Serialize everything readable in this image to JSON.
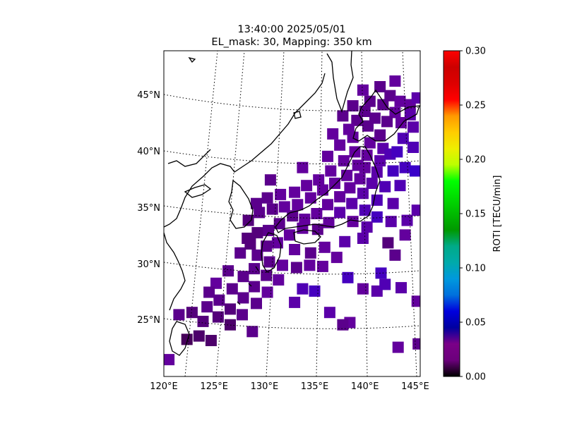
{
  "chart_data": {
    "type": "heatmap",
    "title_line1": "13:40:00 2025/05/01",
    "title_line2": "EL_mask: 30, Mapping: 350 km",
    "colorbar": {
      "label": "ROTI [TECU/min]",
      "min": 0.0,
      "max": 0.3,
      "ticks": [
        "0.00",
        "0.05",
        "0.10",
        "0.15",
        "0.20",
        "0.25",
        "0.30"
      ]
    },
    "lon_ticks": [
      "120°E",
      "125°E",
      "130°E",
      "135°E",
      "140°E",
      "145°E"
    ],
    "lat_ticks": [
      "25°N",
      "30°N",
      "35°N",
      "40°N",
      "45°N"
    ],
    "extent": {
      "lon": [
        120,
        145.5
      ],
      "lat": [
        20,
        49
      ]
    },
    "grid": true,
    "colormap": "nipy_spectral",
    "colors": {
      "low": "#000000",
      "mid": "#3a0a5c",
      "high": "#ff0000"
    },
    "cells": [
      [
        141.5,
        45.8,
        0.03
      ],
      [
        142.5,
        45.0,
        0.03
      ],
      [
        143.5,
        44.5,
        0.035
      ],
      [
        144.5,
        44.2,
        0.035
      ],
      [
        141.8,
        44.2,
        0.03
      ],
      [
        143.0,
        43.5,
        0.035
      ],
      [
        144.5,
        43.3,
        0.04
      ],
      [
        141.0,
        43.0,
        0.03
      ],
      [
        142.2,
        42.7,
        0.03
      ],
      [
        143.6,
        42.6,
        0.035
      ],
      [
        144.8,
        42.2,
        0.04
      ],
      [
        140.3,
        42.3,
        0.03
      ],
      [
        141.5,
        41.5,
        0.03
      ],
      [
        140.5,
        40.8,
        0.035
      ],
      [
        141.8,
        40.3,
        0.04
      ],
      [
        140.2,
        39.7,
        0.035
      ],
      [
        141.5,
        39.2,
        0.04
      ],
      [
        142.5,
        39.8,
        0.045
      ],
      [
        140.0,
        38.6,
        0.035
      ],
      [
        141.2,
        38.2,
        0.04
      ],
      [
        142.8,
        38.3,
        0.05
      ],
      [
        144.0,
        38.6,
        0.05
      ],
      [
        139.5,
        37.6,
        0.035
      ],
      [
        140.7,
        37.2,
        0.04
      ],
      [
        142.0,
        36.9,
        0.045
      ],
      [
        143.5,
        37.0,
        0.045
      ],
      [
        138.5,
        36.8,
        0.035
      ],
      [
        139.8,
        36.3,
        0.04
      ],
      [
        141.2,
        35.7,
        0.045
      ],
      [
        142.8,
        35.4,
        0.04
      ],
      [
        137.5,
        36.0,
        0.035
      ],
      [
        138.7,
        35.4,
        0.04
      ],
      [
        140.0,
        34.8,
        0.045
      ],
      [
        141.2,
        34.2,
        0.05
      ],
      [
        142.6,
        33.8,
        0.04
      ],
      [
        136.3,
        35.3,
        0.035
      ],
      [
        137.5,
        34.6,
        0.04
      ],
      [
        138.8,
        33.8,
        0.035
      ],
      [
        140.2,
        33.3,
        0.04
      ],
      [
        135.2,
        34.5,
        0.035
      ],
      [
        136.4,
        33.7,
        0.035
      ],
      [
        134.0,
        34.0,
        0.035
      ],
      [
        135.3,
        33.1,
        0.03
      ],
      [
        132.8,
        34.3,
        0.03
      ],
      [
        133.8,
        33.2,
        0.035
      ],
      [
        131.5,
        33.6,
        0.03
      ],
      [
        132.5,
        32.6,
        0.035
      ],
      [
        130.4,
        33.0,
        0.03
      ],
      [
        131.3,
        31.9,
        0.035
      ],
      [
        129.3,
        32.8,
        0.025
      ],
      [
        130.2,
        31.6,
        0.03
      ],
      [
        128.3,
        32.3,
        0.025
      ],
      [
        129.3,
        30.8,
        0.03
      ],
      [
        130.5,
        30.2,
        0.03
      ],
      [
        131.8,
        29.9,
        0.035
      ],
      [
        133.2,
        29.7,
        0.03
      ],
      [
        134.5,
        29.9,
        0.035
      ],
      [
        129.0,
        29.6,
        0.03
      ],
      [
        130.2,
        29.0,
        0.03
      ],
      [
        131.4,
        28.6,
        0.035
      ],
      [
        127.9,
        28.9,
        0.03
      ],
      [
        129.0,
        28.0,
        0.03
      ],
      [
        130.3,
        27.5,
        0.035
      ],
      [
        126.8,
        27.8,
        0.03
      ],
      [
        127.9,
        27.0,
        0.03
      ],
      [
        129.2,
        26.5,
        0.03
      ],
      [
        125.5,
        26.8,
        0.03
      ],
      [
        126.6,
        26.0,
        0.025
      ],
      [
        127.8,
        25.5,
        0.03
      ],
      [
        124.3,
        26.2,
        0.03
      ],
      [
        125.4,
        25.3,
        0.025
      ],
      [
        126.6,
        24.6,
        0.02
      ],
      [
        122.8,
        25.7,
        0.025
      ],
      [
        123.9,
        24.9,
        0.025
      ],
      [
        121.5,
        25.5,
        0.03
      ],
      [
        122.3,
        23.3,
        0.015
      ],
      [
        123.5,
        23.6,
        0.02
      ],
      [
        124.7,
        23.2,
        0.02
      ],
      [
        128.8,
        24.0,
        0.03
      ],
      [
        136.5,
        25.7,
        0.04
      ],
      [
        138.5,
        24.8,
        0.035
      ],
      [
        137.8,
        24.6,
        0.03
      ],
      [
        139.8,
        27.8,
        0.035
      ],
      [
        141.2,
        27.6,
        0.04
      ],
      [
        142.0,
        28.2,
        0.045
      ],
      [
        143.6,
        27.9,
        0.04
      ],
      [
        145.2,
        26.7,
        0.035
      ],
      [
        138.3,
        28.8,
        0.05
      ],
      [
        141.6,
        29.2,
        0.05
      ],
      [
        135.0,
        27.6,
        0.05
      ],
      [
        133.8,
        27.8,
        0.045
      ],
      [
        133.0,
        26.6,
        0.04
      ],
      [
        145.3,
        22.9,
        0.03
      ],
      [
        143.3,
        22.6,
        0.035
      ],
      [
        120.5,
        21.5,
        0.035
      ],
      [
        142.3,
        31.9,
        0.025
      ],
      [
        144.0,
        32.6,
        0.035
      ],
      [
        143.0,
        30.8,
        0.03
      ],
      [
        139.8,
        32.3,
        0.04
      ],
      [
        138.0,
        32.0,
        0.04
      ],
      [
        136.0,
        31.5,
        0.035
      ],
      [
        134.6,
        31.0,
        0.03
      ],
      [
        137.2,
        30.6,
        0.035
      ],
      [
        135.8,
        29.8,
        0.035
      ],
      [
        133.0,
        31.3,
        0.035
      ],
      [
        127.6,
        31.0,
        0.03
      ],
      [
        128.6,
        31.8,
        0.025
      ],
      [
        126.4,
        29.4,
        0.03
      ],
      [
        125.2,
        28.3,
        0.035
      ],
      [
        124.5,
        27.5,
        0.03
      ],
      [
        128.4,
        33.9,
        0.025
      ],
      [
        129.5,
        34.6,
        0.03
      ],
      [
        130.8,
        34.9,
        0.03
      ],
      [
        132.0,
        35.1,
        0.035
      ],
      [
        133.3,
        35.3,
        0.035
      ],
      [
        134.6,
        35.9,
        0.035
      ],
      [
        135.8,
        36.6,
        0.035
      ],
      [
        137.0,
        37.2,
        0.035
      ],
      [
        138.2,
        37.9,
        0.035
      ],
      [
        139.3,
        38.8,
        0.035
      ],
      [
        136.6,
        38.3,
        0.035
      ],
      [
        137.9,
        39.2,
        0.035
      ],
      [
        139.0,
        40.0,
        0.035
      ],
      [
        137.5,
        40.6,
        0.035
      ],
      [
        138.8,
        41.3,
        0.035
      ],
      [
        136.3,
        39.6,
        0.035
      ],
      [
        135.4,
        37.5,
        0.035
      ],
      [
        134.2,
        37.0,
        0.035
      ],
      [
        133.0,
        36.4,
        0.035
      ],
      [
        131.6,
        36.2,
        0.035
      ],
      [
        130.3,
        35.9,
        0.03
      ],
      [
        129.2,
        35.4,
        0.03
      ],
      [
        140.0,
        43.6,
        0.03
      ],
      [
        139.2,
        42.8,
        0.03
      ],
      [
        140.5,
        44.5,
        0.03
      ],
      [
        139.8,
        45.5,
        0.035
      ],
      [
        138.8,
        44.1,
        0.03
      ],
      [
        137.8,
        43.2,
        0.03
      ],
      [
        138.4,
        42.0,
        0.035
      ],
      [
        136.8,
        41.6,
        0.035
      ],
      [
        133.8,
        38.6,
        0.035
      ],
      [
        130.6,
        37.5,
        0.03
      ],
      [
        144.8,
        40.4,
        0.045
      ],
      [
        143.8,
        41.2,
        0.045
      ],
      [
        143.2,
        40.0,
        0.05
      ],
      [
        145.0,
        38.3,
        0.055
      ],
      [
        145.2,
        44.8,
        0.04
      ],
      [
        143.0,
        46.3,
        0.035
      ],
      [
        145.2,
        34.8,
        0.04
      ],
      [
        144.2,
        33.9,
        0.04
      ]
    ]
  }
}
